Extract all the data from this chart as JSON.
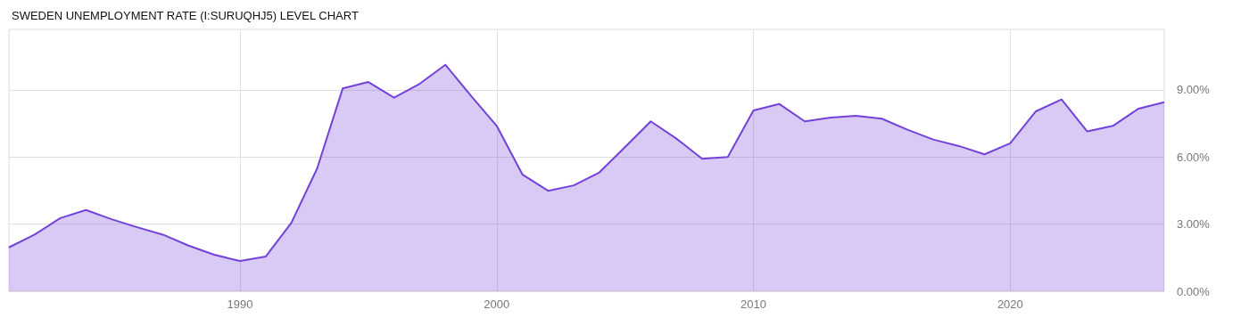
{
  "chart_data": {
    "type": "area",
    "title": "SWEDEN UNEMPLOYMENT RATE (I:SURUQHJ5) LEVEL CHART",
    "x": [
      1981,
      1982,
      1983,
      1984,
      1985,
      1986,
      1987,
      1988,
      1989,
      1990,
      1991,
      1992,
      1993,
      1994,
      1995,
      1996,
      1997,
      1998,
      1999,
      2000,
      2001,
      2002,
      2003,
      2004,
      2005,
      2006,
      2007,
      2008,
      2009,
      2010,
      2011,
      2012,
      2013,
      2014,
      2015,
      2016,
      2017,
      2018,
      2019,
      2020,
      2021,
      2022,
      2023,
      2024,
      2025,
      2026
    ],
    "series": [
      {
        "color": "#7442d8",
        "values": [
          1.96,
          2.53,
          3.27,
          3.63,
          3.22,
          2.86,
          2.53,
          2.04,
          1.63,
          1.35,
          1.55,
          3.06,
          5.47,
          9.06,
          9.35,
          8.65,
          9.27,
          10.12,
          8.73,
          7.39,
          5.22,
          4.49,
          4.73,
          5.31,
          6.45,
          7.59,
          6.82,
          5.92,
          6.0,
          8.08,
          8.37,
          7.59,
          7.76,
          7.84,
          7.71,
          7.22,
          6.78,
          6.49,
          6.12,
          6.61,
          8.04,
          8.57,
          7.14,
          7.39,
          8.16,
          8.45
        ]
      }
    ],
    "xlim": [
      1981,
      2026
    ],
    "xticks": [
      1990,
      2000,
      2010,
      2020
    ],
    "ylim": [
      0,
      11.7
    ],
    "yticks": [
      {
        "value": 0,
        "label": "0.00%"
      },
      {
        "value": 3,
        "label": "3.00%"
      },
      {
        "value": 6,
        "label": "6.00%"
      },
      {
        "value": 9,
        "label": "9.00%"
      }
    ],
    "grid": true
  }
}
